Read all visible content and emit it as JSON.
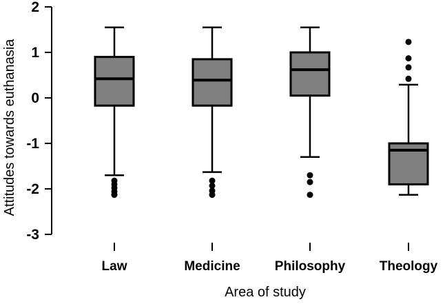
{
  "chart_data": {
    "type": "box",
    "xlabel": "Area of study",
    "ylabel": "Attitudes towards euthanasia",
    "ylim": [
      -3,
      2
    ],
    "yticks": [
      "2",
      "1",
      "0",
      "-1",
      "-2",
      "-3"
    ],
    "ytick_values": [
      2,
      1,
      0,
      -1,
      -2,
      -3
    ],
    "grid": false,
    "box_fill": "#808080",
    "median_color": "#000000",
    "categories": [
      "Law",
      "Medicine",
      "Philosophy",
      "Theology"
    ],
    "boxes": [
      {
        "name": "Law",
        "whisker_low": -1.7,
        "q1": -0.17,
        "median": 0.42,
        "q3": 0.9,
        "whisker_high": 1.55,
        "outliers": [
          -1.82,
          -1.9,
          -1.98,
          -2.06,
          -2.13
        ]
      },
      {
        "name": "Medicine",
        "whisker_low": -1.63,
        "q1": -0.17,
        "median": 0.39,
        "q3": 0.85,
        "whisker_high": 1.55,
        "outliers": [
          -1.82,
          -1.93,
          -2.04,
          -2.13
        ]
      },
      {
        "name": "Philosophy",
        "whisker_low": -1.3,
        "q1": 0.05,
        "median": 0.62,
        "q3": 1.0,
        "whisker_high": 1.55,
        "outliers": [
          -1.7,
          -1.85,
          -2.13
        ]
      },
      {
        "name": "Theology",
        "whisker_low": -2.13,
        "q1": -1.9,
        "median": -1.15,
        "q3": -1.0,
        "whisker_high": 0.29,
        "outliers": [
          0.42,
          0.67,
          0.87,
          1.23
        ]
      }
    ]
  }
}
